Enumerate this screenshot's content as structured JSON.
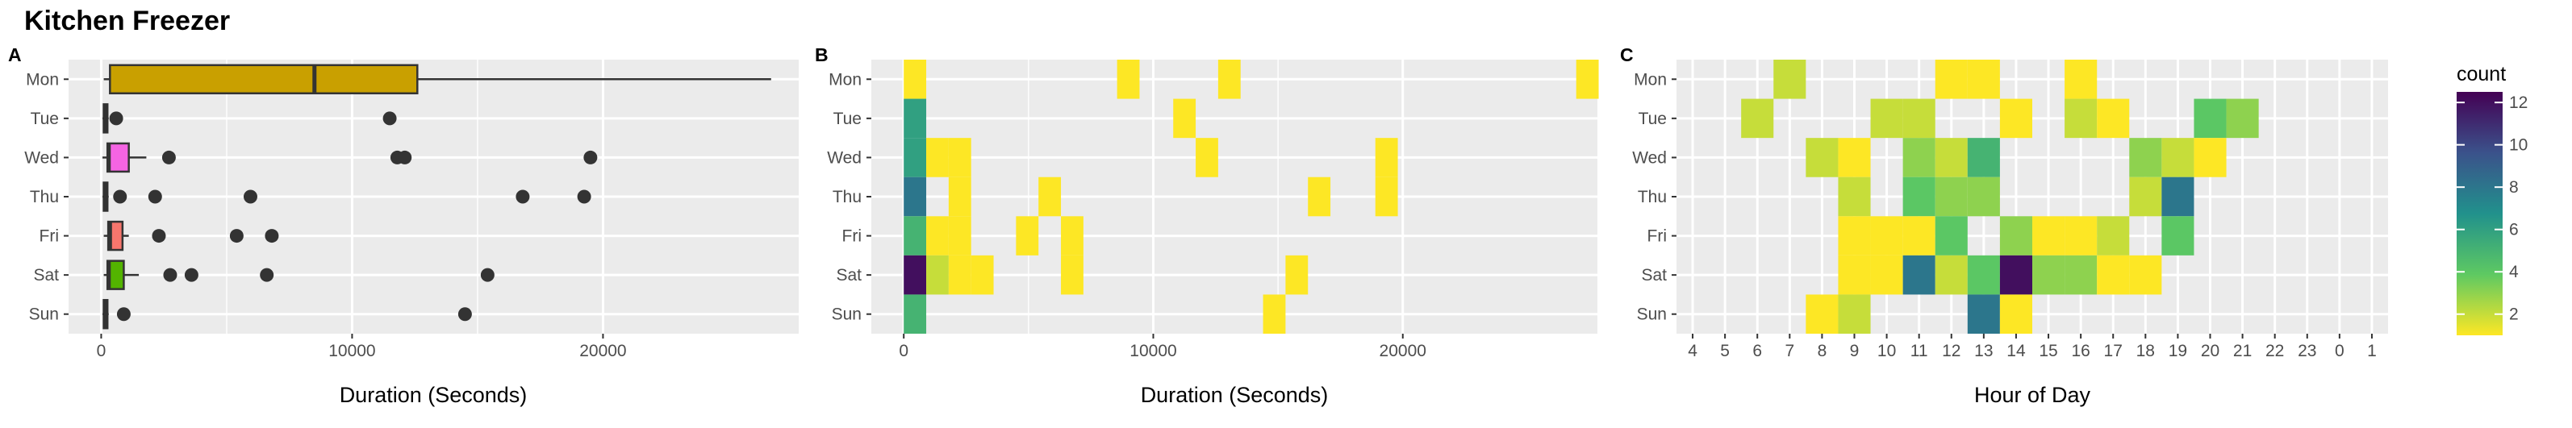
{
  "title": "Kitchen Freezer",
  "panels": {
    "a": {
      "label": "A",
      "xlabel": "Duration (Seconds)"
    },
    "b": {
      "label": "B",
      "xlabel": "Duration (Seconds)"
    },
    "c": {
      "label": "C",
      "xlabel": "Hour of Day"
    }
  },
  "legend": {
    "title": "count",
    "ticks": [
      2,
      4,
      6,
      8,
      10,
      12
    ]
  },
  "colors": {
    "panel_bg": "#ebebeb",
    "grid": "#ffffff",
    "box_outline": "#333333",
    "point": "#333333"
  },
  "chart_data": [
    {
      "type": "box",
      "panel": "A",
      "orientation": "horizontal",
      "categories": [
        "Mon",
        "Tue",
        "Wed",
        "Thu",
        "Fri",
        "Sat",
        "Sun"
      ],
      "xlabel": "Duration (Seconds)",
      "xlim": [
        -1300,
        27800
      ],
      "xticks": [
        0,
        10000,
        20000
      ],
      "grid": true,
      "boxes": [
        {
          "day": "Mon",
          "min": 100,
          "q1": 350,
          "median": 8500,
          "q3": 12600,
          "max": 26700,
          "outliers": [],
          "fill": "#c9a000"
        },
        {
          "day": "Tue",
          "min": 50,
          "q1": 100,
          "median": 150,
          "q3": 250,
          "max": 300,
          "outliers": [
            600,
            11500
          ],
          "fill": "#7cae00"
        },
        {
          "day": "Wed",
          "min": 50,
          "q1": 250,
          "median": 300,
          "q3": 1100,
          "max": 1800,
          "outliers": [
            2700,
            11800,
            12100,
            19500
          ],
          "fill": "#f564e3"
        },
        {
          "day": "Thu",
          "min": 50,
          "q1": 100,
          "median": 150,
          "q3": 250,
          "max": 300,
          "outliers": [
            750,
            2150,
            5950,
            16800,
            19250
          ],
          "fill": "#00bfc4"
        },
        {
          "day": "Fri",
          "min": 100,
          "q1": 280,
          "median": 350,
          "q3": 850,
          "max": 1100,
          "outliers": [
            2300,
            5400,
            6800
          ],
          "fill": "#f8766d"
        },
        {
          "day": "Sat",
          "min": 100,
          "q1": 250,
          "median": 300,
          "q3": 900,
          "max": 1500,
          "outliers": [
            2750,
            3600,
            6600,
            15400
          ],
          "fill": "#53b400"
        },
        {
          "day": "Sun",
          "min": 50,
          "q1": 100,
          "median": 150,
          "q3": 250,
          "max": 300,
          "outliers": [
            900,
            14500
          ],
          "fill": "#00b6eb"
        }
      ]
    },
    {
      "type": "heatmap",
      "panel": "B",
      "categories": [
        "Mon",
        "Tue",
        "Wed",
        "Thu",
        "Fri",
        "Sat",
        "Sun"
      ],
      "xlabel": "Duration (Seconds)",
      "xlim": [
        -1300,
        27800
      ],
      "xticks": [
        0,
        10000,
        20000
      ],
      "bin_width": 900,
      "color_scale": "viridis (reversed)",
      "count_range": [
        1,
        12.5
      ],
      "cells": [
        {
          "day": "Mon",
          "bins": [
            [
              0,
              1
            ],
            [
              8550,
              1
            ],
            [
              12600,
              1
            ],
            [
              26950,
              1
            ]
          ]
        },
        {
          "day": "Tue",
          "bins": [
            [
              0,
              6
            ],
            [
              10800,
              1
            ]
          ]
        },
        {
          "day": "Wed",
          "bins": [
            [
              0,
              6
            ],
            [
              900,
              1
            ],
            [
              1800,
              1
            ],
            [
              11700,
              1
            ],
            [
              18900,
              1
            ]
          ]
        },
        {
          "day": "Thu",
          "bins": [
            [
              0,
              8
            ],
            [
              1800,
              1
            ],
            [
              5400,
              1
            ],
            [
              16200,
              1
            ],
            [
              18900,
              1
            ]
          ]
        },
        {
          "day": "Fri",
          "bins": [
            [
              0,
              5
            ],
            [
              900,
              1
            ],
            [
              1800,
              1
            ],
            [
              4500,
              1
            ],
            [
              6300,
              1
            ]
          ]
        },
        {
          "day": "Sat",
          "bins": [
            [
              0,
              12
            ],
            [
              900,
              2
            ],
            [
              1800,
              1
            ],
            [
              2700,
              1
            ],
            [
              6300,
              1
            ],
            [
              15300,
              1
            ]
          ]
        },
        {
          "day": "Sun",
          "bins": [
            [
              0,
              5
            ],
            [
              14400,
              1
            ]
          ]
        }
      ]
    },
    {
      "type": "heatmap",
      "panel": "C",
      "categories": [
        "Mon",
        "Tue",
        "Wed",
        "Thu",
        "Fri",
        "Sat",
        "Sun"
      ],
      "xlabel": "Hour of Day",
      "xticks": [
        "4",
        "5",
        "6",
        "7",
        "8",
        "9",
        "10",
        "11",
        "12",
        "13",
        "14",
        "15",
        "16",
        "17",
        "18",
        "19",
        "20",
        "21",
        "22",
        "23",
        "0",
        "1"
      ],
      "color_scale": "viridis (reversed)",
      "count_range": [
        1,
        12.5
      ],
      "cells": [
        {
          "day": "Mon",
          "hours": [
            [
              "7",
              2
            ],
            [
              "12",
              1
            ],
            [
              "13",
              1
            ],
            [
              "16",
              1
            ]
          ]
        },
        {
          "day": "Tue",
          "hours": [
            [
              "6",
              2
            ],
            [
              "10",
              2
            ],
            [
              "11",
              2
            ],
            [
              "14",
              1
            ],
            [
              "16",
              2
            ],
            [
              "17",
              1
            ],
            [
              "20",
              4
            ],
            [
              "21",
              3
            ]
          ]
        },
        {
          "day": "Wed",
          "hours": [
            [
              "8",
              2
            ],
            [
              "9",
              1
            ],
            [
              "11",
              3
            ],
            [
              "12",
              2
            ],
            [
              "13",
              5
            ],
            [
              "18",
              3
            ],
            [
              "19",
              2
            ],
            [
              "20",
              1
            ]
          ]
        },
        {
          "day": "Thu",
          "hours": [
            [
              "9",
              2
            ],
            [
              "11",
              4
            ],
            [
              "12",
              3
            ],
            [
              "13",
              3
            ],
            [
              "18",
              2
            ],
            [
              "19",
              8
            ]
          ]
        },
        {
          "day": "Fri",
          "hours": [
            [
              "9",
              1
            ],
            [
              "10",
              1
            ],
            [
              "11",
              1
            ],
            [
              "12",
              4
            ],
            [
              "14",
              3
            ],
            [
              "15",
              1
            ],
            [
              "16",
              1
            ],
            [
              "17",
              2
            ],
            [
              "19",
              4
            ]
          ]
        },
        {
          "day": "Sat",
          "hours": [
            [
              "9",
              1
            ],
            [
              "10",
              1
            ],
            [
              "11",
              8
            ],
            [
              "12",
              2
            ],
            [
              "13",
              4
            ],
            [
              "14",
              12
            ],
            [
              "15",
              3
            ],
            [
              "16",
              3
            ],
            [
              "17",
              1
            ],
            [
              "18",
              1
            ]
          ]
        },
        {
          "day": "Sun",
          "hours": [
            [
              "8",
              1
            ],
            [
              "9",
              2
            ],
            [
              "13",
              8
            ],
            [
              "14",
              1
            ]
          ]
        }
      ]
    }
  ]
}
